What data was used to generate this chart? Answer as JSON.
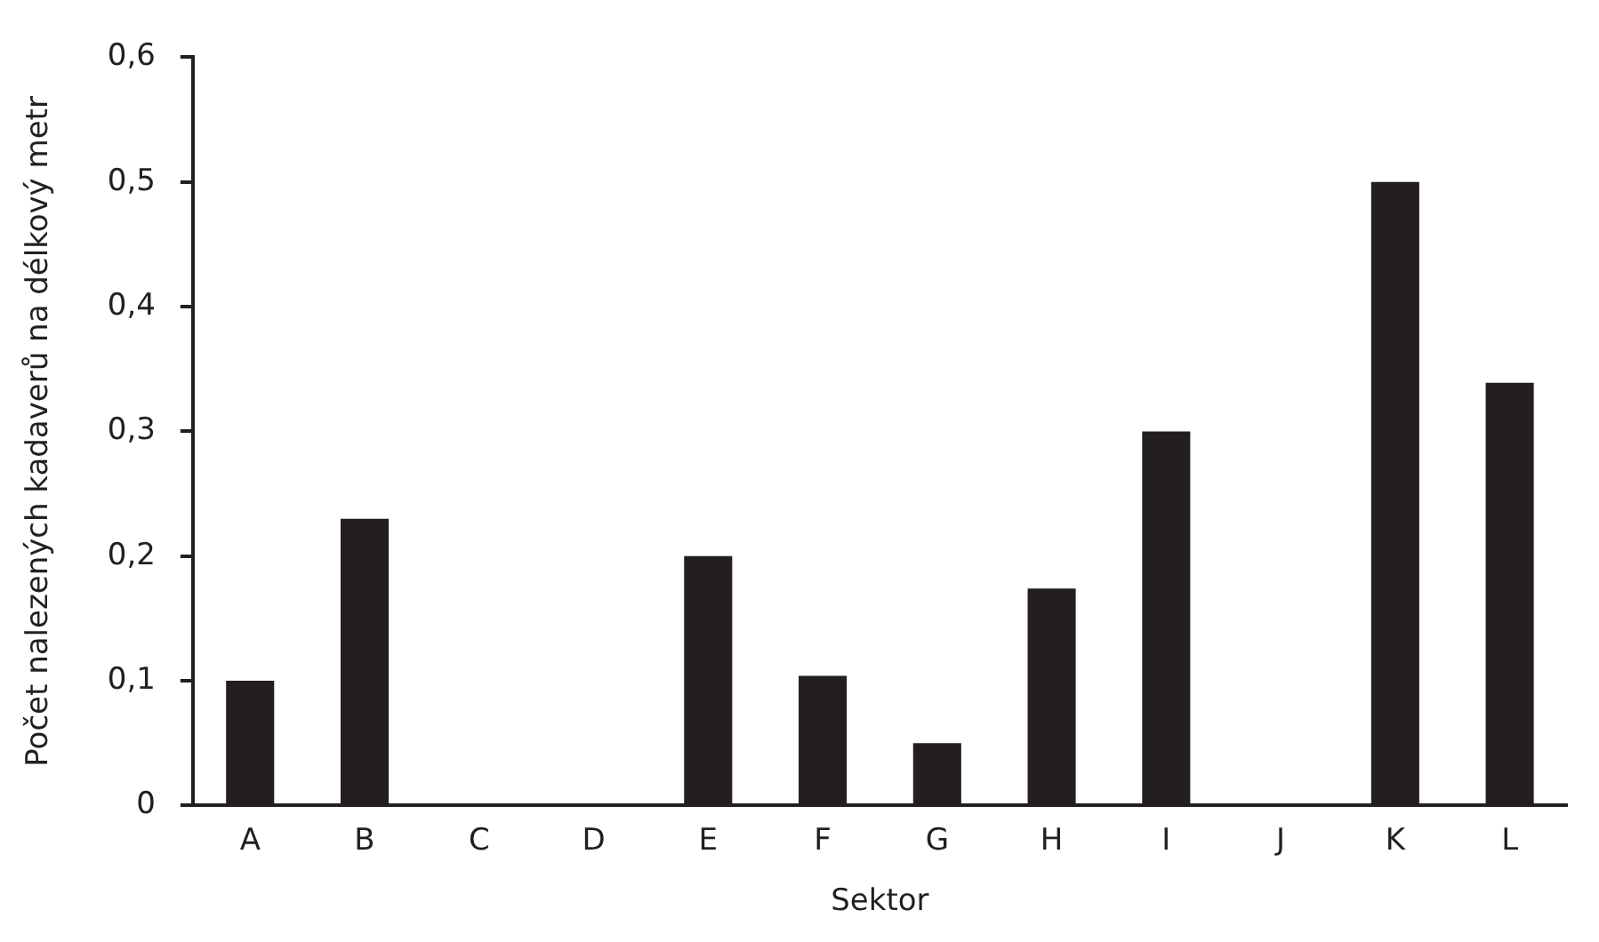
{
  "chart_data": {
    "type": "bar",
    "xlabel": "Sektor",
    "ylabel": "Počet nalezených kadaverů na délkový metr",
    "categories": [
      "A",
      "B",
      "C",
      "D",
      "E",
      "F",
      "G",
      "H",
      "I",
      "J",
      "K",
      "L"
    ],
    "values": [
      0.1,
      0.23,
      0,
      0,
      0.2,
      0.104,
      0.05,
      0.174,
      0.3,
      0,
      0.5,
      0.339
    ],
    "color": "#231f20",
    "ylim": [
      0,
      0.6
    ],
    "yticks": [
      {
        "value": 0,
        "label": "0"
      },
      {
        "value": 0.1,
        "label": "0,1"
      },
      {
        "value": 0.2,
        "label": "0,2"
      },
      {
        "value": 0.3,
        "label": "0,3"
      },
      {
        "value": 0.4,
        "label": "0,4"
      },
      {
        "value": 0.5,
        "label": "0,5"
      },
      {
        "value": 0.6,
        "label": "0,6"
      }
    ],
    "grid": false,
    "legend": false
  }
}
